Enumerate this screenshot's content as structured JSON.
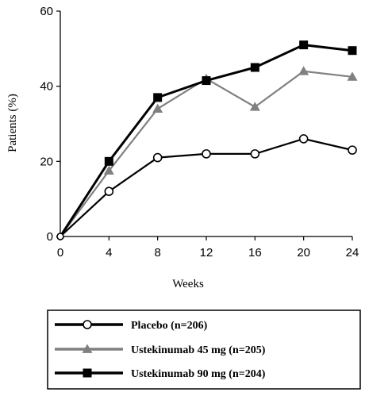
{
  "chart_data": {
    "type": "line",
    "xlabel": "Weeks",
    "ylabel": "Patients (%)",
    "x": [
      0,
      4,
      8,
      12,
      16,
      20,
      24
    ],
    "xticks": [
      "0",
      "4",
      "8",
      "12",
      "16",
      "20",
      "24"
    ],
    "yticks": [
      "0",
      "20",
      "40",
      "60"
    ],
    "xlim": [
      0,
      24
    ],
    "ylim": [
      0,
      60
    ],
    "grid": false,
    "legend_position": "bottom",
    "series": [
      {
        "name": "Placebo (n=206)",
        "values": [
          0,
          12,
          21,
          22,
          22,
          26,
          23
        ],
        "color": "#000000",
        "marker": "open-circle"
      },
      {
        "name": "Ustekinumab 45 mg (n=205)",
        "values": [
          0,
          17.5,
          34,
          42,
          34.5,
          44,
          42.5
        ],
        "color": "#808080",
        "marker": "triangle"
      },
      {
        "name": "Ustekinumab 90 mg (n=204)",
        "values": [
          0,
          20,
          37,
          41.5,
          45,
          51,
          49.5
        ],
        "color": "#000000",
        "marker": "square"
      }
    ]
  }
}
